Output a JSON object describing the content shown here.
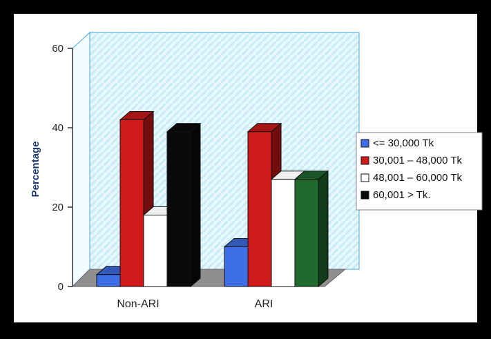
{
  "chart_data": {
    "type": "bar",
    "title": "",
    "xlabel": "",
    "ylabel": "Percentage",
    "ylim": [
      0,
      60
    ],
    "yticks": [
      0,
      20,
      40,
      60
    ],
    "categories": [
      "Non-ARI",
      "ARI"
    ],
    "series": [
      {
        "name": "<= 30,000 Tk",
        "values": [
          3,
          10
        ],
        "color": "#3f6fe6"
      },
      {
        "name": "30,001 – 48,000 Tk",
        "values": [
          42,
          39
        ],
        "color": "#d01a1a"
      },
      {
        "name": "48,001 – 60,000 Tk",
        "values": [
          18,
          27
        ],
        "color": "#ffffff"
      },
      {
        "name": "60,001 > Tk.",
        "values": [
          39,
          27
        ],
        "colors": [
          "#0a0a0a",
          "#1f6b2e"
        ],
        "color": "#0a0a0a"
      }
    ],
    "legend_position": "right",
    "grid": false,
    "three_d": true
  }
}
